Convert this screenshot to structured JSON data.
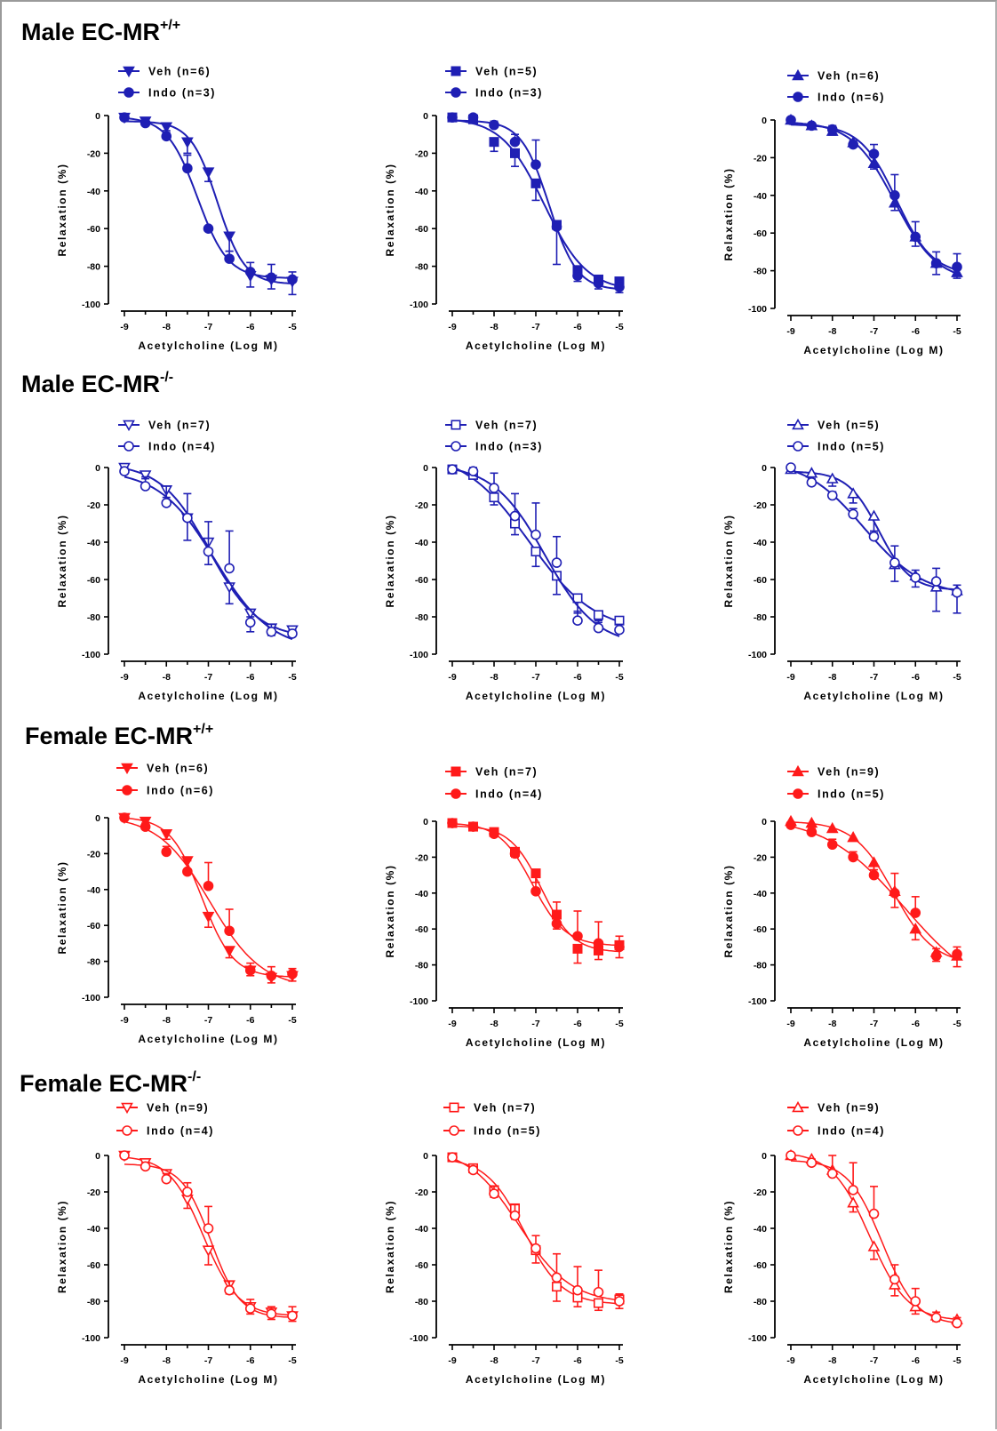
{
  "colors": {
    "male": "#1f1fb4",
    "female": "#ff1a1a"
  },
  "sections": [
    {
      "title": "Male EC-MR",
      "sup": "+/+"
    },
    {
      "title": "Male EC-MR",
      "sup": "-/-"
    },
    {
      "title": "Female EC-MR",
      "sup": "+/+"
    },
    {
      "title": "Female EC-MR",
      "sup": "-/-"
    }
  ],
  "chart_data": [
    {
      "type": "line",
      "row": 0,
      "col": 0,
      "color": "#1f1fb4",
      "xlabel": "Acetylcholine (Log M)",
      "ylabel": "Relaxation (%)",
      "xlim": [
        -9,
        -5
      ],
      "ylim": [
        -100,
        0
      ],
      "xticks": [
        "-9",
        "-8",
        "-7",
        "-6",
        "-5"
      ],
      "yticks": [
        "0",
        "-20",
        "-40",
        "-60",
        "-80",
        "-100"
      ],
      "x": [
        -9,
        -8.5,
        -8,
        -7.5,
        -7,
        -6.5,
        -6,
        -5.5,
        -5
      ],
      "series": [
        {
          "name": "Veh (n=6)",
          "marker": "triangle-down",
          "filled": true,
          "values": [
            -1,
            -3,
            -6,
            -14,
            -30,
            -64,
            -85,
            -87,
            -88
          ],
          "errors": [
            1,
            2,
            3,
            6,
            5,
            8,
            6,
            5,
            7
          ]
        },
        {
          "name": "Indo (n=3)",
          "marker": "circle",
          "filled": true,
          "values": [
            -1,
            -4,
            -11,
            -28,
            -60,
            -76,
            -83,
            -86,
            -87
          ],
          "errors": [
            1,
            2,
            3,
            7,
            0,
            4,
            5,
            7,
            4
          ]
        }
      ]
    },
    {
      "type": "line",
      "row": 0,
      "col": 1,
      "color": "#1f1fb4",
      "xlabel": "Acetylcholine (Log M)",
      "ylabel": "Relaxation (%)",
      "xlim": [
        -9,
        -5
      ],
      "ylim": [
        -100,
        0
      ],
      "xticks": [
        "-9",
        "-8",
        "-7",
        "-6",
        "-5"
      ],
      "yticks": [
        "0",
        "-20",
        "-40",
        "-60",
        "-80",
        "-100"
      ],
      "x": [
        -9,
        -8.5,
        -8,
        -7.5,
        -7,
        -6.5,
        -6,
        -5.5,
        -5
      ],
      "series": [
        {
          "name": "Veh (n=5)",
          "marker": "square",
          "filled": true,
          "values": [
            -1,
            -2,
            -14,
            -20,
            -36,
            -58,
            -82,
            -87,
            -88
          ],
          "errors": [
            1,
            1,
            5,
            7,
            9,
            21,
            6,
            5,
            6
          ]
        },
        {
          "name": "Indo (n=3)",
          "marker": "circle",
          "filled": true,
          "values": [
            -1,
            -1,
            -5,
            -14,
            -26,
            -59,
            -85,
            -89,
            -91
          ],
          "errors": [
            1,
            1,
            2,
            4,
            13,
            2,
            5,
            4,
            3
          ]
        }
      ]
    },
    {
      "type": "line",
      "row": 0,
      "col": 2,
      "color": "#1f1fb4",
      "xlabel": "Acetylcholine (Log M)",
      "ylabel": "Relaxation (%)",
      "xlim": [
        -9,
        -5
      ],
      "ylim": [
        -100,
        0
      ],
      "xticks": [
        "-9",
        "-8",
        "-7",
        "-6",
        "-5"
      ],
      "yticks": [
        "0",
        "-20",
        "-40",
        "-60",
        "-80",
        "-100"
      ],
      "x": [
        -9,
        -8.5,
        -8,
        -7.5,
        -7,
        -6.5,
        -6,
        -5.5,
        -5
      ],
      "series": [
        {
          "name": "Veh (n=6)",
          "marker": "triangle-up",
          "filled": true,
          "values": [
            0,
            -3,
            -6,
            -12,
            -23,
            -44,
            -62,
            -76,
            -81
          ],
          "errors": [
            1,
            1,
            2,
            2,
            3,
            4,
            5,
            6,
            3
          ]
        },
        {
          "name": "Indo (n=6)",
          "marker": "circle",
          "filled": true,
          "values": [
            0,
            -3,
            -5,
            -13,
            -18,
            -40,
            -62,
            -76,
            -78
          ],
          "errors": [
            1,
            1,
            2,
            2,
            5,
            11,
            8,
            6,
            7
          ]
        }
      ]
    },
    {
      "type": "line",
      "row": 1,
      "col": 0,
      "color": "#1f1fb4",
      "xlabel": "Acetylcholine (Log M)",
      "ylabel": "Relaxation (%)",
      "xlim": [
        -9,
        -5
      ],
      "ylim": [
        -100,
        0
      ],
      "xticks": [
        "-9",
        "-8",
        "-7",
        "-6",
        "-5"
      ],
      "yticks": [
        "0",
        "-20",
        "-40",
        "-60",
        "-80",
        "-100"
      ],
      "x": [
        -9,
        -8.5,
        -8,
        -7.5,
        -7,
        -6.5,
        -6,
        -5.5,
        -5
      ],
      "series": [
        {
          "name": "Veh (n=7)",
          "marker": "triangle-down",
          "filled": false,
          "values": [
            0,
            -4,
            -12,
            -27,
            -40,
            -64,
            -78,
            -86,
            -87
          ],
          "errors": [
            1,
            2,
            4,
            12,
            12,
            9,
            10,
            4,
            3
          ]
        },
        {
          "name": "Indo (n=4)",
          "marker": "circle",
          "filled": false,
          "values": [
            -2,
            -10,
            -19,
            -27,
            -45,
            -54,
            -83,
            -88,
            -89
          ],
          "errors": [
            2,
            5,
            9,
            13,
            16,
            20,
            3,
            4,
            2
          ]
        }
      ]
    },
    {
      "type": "line",
      "row": 1,
      "col": 1,
      "color": "#1f1fb4",
      "xlabel": "Acetylcholine (Log M)",
      "ylabel": "Relaxation (%)",
      "xlim": [
        -9,
        -5
      ],
      "ylim": [
        -100,
        0
      ],
      "xticks": [
        "-9",
        "-8",
        "-7",
        "-6",
        "-5"
      ],
      "yticks": [
        "0",
        "-20",
        "-40",
        "-60",
        "-80",
        "-100"
      ],
      "x": [
        -9,
        -8.5,
        -8,
        -7.5,
        -7,
        -6.5,
        -6,
        -5.5,
        -5
      ],
      "series": [
        {
          "name": "Veh (n=7)",
          "marker": "square",
          "filled": false,
          "values": [
            -1,
            -4,
            -16,
            -30,
            -45,
            -58,
            -70,
            -79,
            -82
          ],
          "errors": [
            1,
            2,
            4,
            6,
            8,
            10,
            8,
            4,
            4
          ]
        },
        {
          "name": "Indo (n=3)",
          "marker": "circle",
          "filled": false,
          "values": [
            -1,
            -2,
            -11,
            -26,
            -36,
            -51,
            -82,
            -86,
            -87
          ],
          "errors": [
            1,
            2,
            8,
            12,
            17,
            14,
            5,
            4,
            3
          ]
        }
      ]
    },
    {
      "type": "line",
      "row": 1,
      "col": 2,
      "color": "#1f1fb4",
      "xlabel": "Acetylcholine (Log M)",
      "ylabel": "Relaxation (%)",
      "xlim": [
        -9,
        -5
      ],
      "ylim": [
        -100,
        0
      ],
      "xticks": [
        "-9",
        "-8",
        "-7",
        "-6",
        "-5"
      ],
      "yticks": [
        "0",
        "-20",
        "-40",
        "-60",
        "-80",
        "-100"
      ],
      "x": [
        -9,
        -8.5,
        -8,
        -7.5,
        -7,
        -6.5,
        -6,
        -5.5,
        -5
      ],
      "series": [
        {
          "name": "Veh (n=5)",
          "marker": "triangle-up",
          "filled": false,
          "values": [
            -1,
            -3,
            -6,
            -14,
            -26,
            -52,
            -58,
            -64,
            -66
          ],
          "errors": [
            1,
            2,
            4,
            5,
            9,
            9,
            6,
            13,
            12
          ]
        },
        {
          "name": "Indo (n=5)",
          "marker": "circle",
          "filled": false,
          "values": [
            0,
            -8,
            -15,
            -25,
            -37,
            -51,
            -59,
            -61,
            -67
          ],
          "errors": [
            1,
            2,
            2,
            3,
            3,
            9,
            4,
            7,
            4
          ]
        }
      ]
    },
    {
      "type": "line",
      "row": 2,
      "col": 0,
      "color": "#ff1a1a",
      "xlabel": "Acetylcholine (Log M)",
      "ylabel": "Relaxation (%)",
      "xlim": [
        -9,
        -5
      ],
      "ylim": [
        -100,
        0
      ],
      "xticks": [
        "-9",
        "-8",
        "-7",
        "-6",
        "-5"
      ],
      "yticks": [
        "0",
        "-20",
        "-40",
        "-60",
        "-80",
        "-100"
      ],
      "x": [
        -9,
        -8.5,
        -8,
        -7.5,
        -7,
        -6.5,
        -6,
        -5.5,
        -5
      ],
      "series": [
        {
          "name": "Veh (n=6)",
          "marker": "triangle-down",
          "filled": true,
          "values": [
            0,
            -2,
            -9,
            -24,
            -55,
            -74,
            -85,
            -89,
            -88
          ],
          "errors": [
            1,
            2,
            3,
            5,
            6,
            4,
            3,
            3,
            3
          ]
        },
        {
          "name": "Indo (n=6)",
          "marker": "circle",
          "filled": true,
          "values": [
            0,
            -5,
            -19,
            -30,
            -38,
            -63,
            -85,
            -88,
            -87
          ],
          "errors": [
            1,
            2,
            3,
            6,
            13,
            12,
            4,
            5,
            3
          ]
        }
      ]
    },
    {
      "type": "line",
      "row": 2,
      "col": 1,
      "color": "#ff1a1a",
      "xlabel": "Acetylcholine (Log M)",
      "ylabel": "Relaxation (%)",
      "xlim": [
        -9,
        -5
      ],
      "ylim": [
        -100,
        0
      ],
      "xticks": [
        "-9",
        "-8",
        "-7",
        "-6",
        "-5"
      ],
      "yticks": [
        "0",
        "-20",
        "-40",
        "-60",
        "-80",
        "-100"
      ],
      "x": [
        -9,
        -8.5,
        -8,
        -7.5,
        -7,
        -6.5,
        -6,
        -5.5,
        -5
      ],
      "series": [
        {
          "name": "Veh (n=7)",
          "marker": "square",
          "filled": true,
          "values": [
            -1,
            -3,
            -6,
            -17,
            -29,
            -52,
            -71,
            -72,
            -69
          ],
          "errors": [
            1,
            1,
            2,
            3,
            5,
            8,
            8,
            5,
            7
          ]
        },
        {
          "name": "Indo (n=4)",
          "marker": "circle",
          "filled": true,
          "values": [
            -1,
            -3,
            -7,
            -18,
            -39,
            -57,
            -64,
            -68,
            -70
          ],
          "errors": [
            1,
            1,
            2,
            3,
            8,
            12,
            14,
            12,
            6
          ]
        }
      ]
    },
    {
      "type": "line",
      "row": 2,
      "col": 2,
      "color": "#ff1a1a",
      "xlabel": "Acetylcholine (Log M)",
      "ylabel": "Relaxation (%)",
      "xlim": [
        -9,
        -5
      ],
      "ylim": [
        -100,
        0
      ],
      "xticks": [
        "-9",
        "-8",
        "-7",
        "-6",
        "-5"
      ],
      "yticks": [
        "0",
        "-20",
        "-40",
        "-60",
        "-80",
        "-100"
      ],
      "x": [
        -9,
        -8.5,
        -8,
        -7.5,
        -7,
        -6.5,
        -6,
        -5.5,
        -5
      ],
      "series": [
        {
          "name": "Veh (n=9)",
          "marker": "triangle-up",
          "filled": true,
          "values": [
            0,
            -1,
            -4,
            -9,
            -23,
            -39,
            -60,
            -73,
            -75
          ],
          "errors": [
            1,
            1,
            2,
            2,
            4,
            9,
            6,
            5,
            6
          ]
        },
        {
          "name": "Indo (n=5)",
          "marker": "circle",
          "filled": true,
          "values": [
            -2,
            -6,
            -13,
            -20,
            -30,
            -40,
            -51,
            -75,
            -74
          ],
          "errors": [
            1,
            2,
            3,
            3,
            5,
            11,
            9,
            4,
            4
          ]
        }
      ]
    },
    {
      "type": "line",
      "row": 3,
      "col": 0,
      "color": "#ff1a1a",
      "xlabel": "Acetylcholine (Log M)",
      "ylabel": "Relaxation (%)",
      "xlim": [
        -9,
        -5
      ],
      "ylim": [
        -100,
        0
      ],
      "xticks": [
        "-9",
        "-8",
        "-7",
        "-6",
        "-5"
      ],
      "yticks": [
        "0",
        "-20",
        "-40",
        "-60",
        "-80",
        "-100"
      ],
      "x": [
        -9,
        -8.5,
        -8,
        -7.5,
        -7,
        -6.5,
        -6,
        -5.5,
        -5
      ],
      "series": [
        {
          "name": "Veh (n=9)",
          "marker": "triangle-down",
          "filled": false,
          "values": [
            0,
            -4,
            -10,
            -24,
            -52,
            -71,
            -83,
            -86,
            -88
          ],
          "errors": [
            1,
            2,
            3,
            5,
            8,
            5,
            4,
            4,
            3
          ]
        },
        {
          "name": "Indo (n=4)",
          "marker": "circle",
          "filled": false,
          "values": [
            0,
            -6,
            -13,
            -20,
            -40,
            -74,
            -84,
            -87,
            -88
          ],
          "errors": [
            1,
            2,
            3,
            5,
            12,
            5,
            5,
            4,
            5
          ]
        }
      ]
    },
    {
      "type": "line",
      "row": 3,
      "col": 1,
      "color": "#ff1a1a",
      "xlabel": "Acetylcholine (Log M)",
      "ylabel": "Relaxation (%)",
      "xlim": [
        -9,
        -5
      ],
      "ylim": [
        -100,
        0
      ],
      "xticks": [
        "-9",
        "-8",
        "-7",
        "-6",
        "-5"
      ],
      "yticks": [
        "0",
        "-20",
        "-40",
        "-60",
        "-80",
        "-100"
      ],
      "x": [
        -9,
        -8.5,
        -8,
        -7.5,
        -7,
        -6.5,
        -6,
        -5.5,
        -5
      ],
      "series": [
        {
          "name": "Veh (n=7)",
          "marker": "square",
          "filled": false,
          "values": [
            -1,
            -7,
            -19,
            -29,
            -52,
            -72,
            -78,
            -81,
            -79
          ],
          "errors": [
            1,
            2,
            4,
            6,
            7,
            8,
            5,
            4,
            5
          ]
        },
        {
          "name": "Indo (n=5)",
          "marker": "circle",
          "filled": false,
          "values": [
            -1,
            -8,
            -21,
            -33,
            -51,
            -67,
            -74,
            -75,
            -80
          ],
          "errors": [
            1,
            2,
            4,
            6,
            7,
            13,
            13,
            12,
            4
          ]
        }
      ]
    },
    {
      "type": "line",
      "row": 3,
      "col": 2,
      "color": "#ff1a1a",
      "xlabel": "Acetylcholine (Log M)",
      "ylabel": "Relaxation (%)",
      "xlim": [
        -9,
        -5
      ],
      "ylim": [
        -100,
        0
      ],
      "xticks": [
        "-9",
        "-8",
        "-7",
        "-6",
        "-5"
      ],
      "yticks": [
        "0",
        "-20",
        "-40",
        "-60",
        "-80",
        "-100"
      ],
      "x": [
        -9,
        -8.5,
        -8,
        -7.5,
        -7,
        -6.5,
        -6,
        -5.5,
        -5
      ],
      "series": [
        {
          "name": "Veh (n=9)",
          "marker": "triangle-up",
          "filled": false,
          "values": [
            0,
            -2,
            -8,
            -26,
            -50,
            -71,
            -83,
            -88,
            -90
          ],
          "errors": [
            1,
            1,
            3,
            5,
            7,
            6,
            4,
            3,
            3
          ]
        },
        {
          "name": "Indo (n=4)",
          "marker": "circle",
          "filled": false,
          "values": [
            0,
            -4,
            -10,
            -19,
            -32,
            -68,
            -80,
            -89,
            -92
          ],
          "errors": [
            1,
            2,
            10,
            15,
            15,
            8,
            7,
            3,
            3
          ]
        }
      ]
    }
  ]
}
